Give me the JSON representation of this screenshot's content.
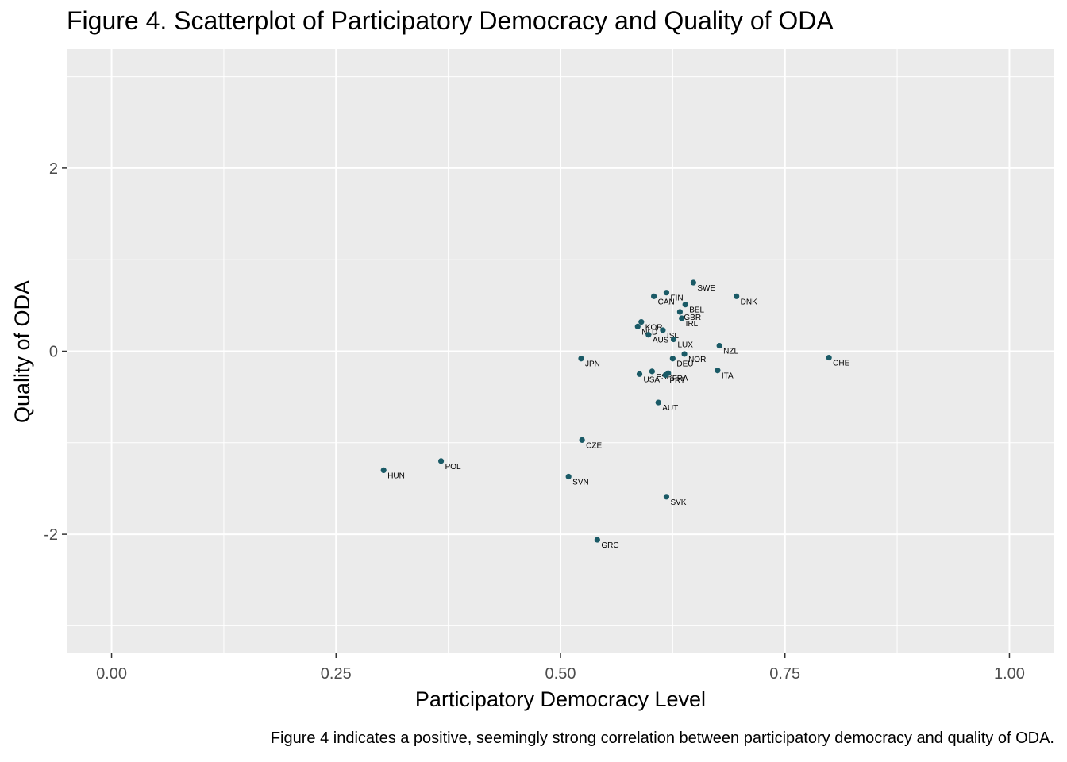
{
  "chart_data": {
    "type": "scatter",
    "title": "Figure 4. Scatterplot of Participatory Democracy and Quality of ODA",
    "xlabel": "Participatory Democracy Level",
    "ylabel": "Quality of ODA",
    "xlim": [
      -0.05,
      1.05
    ],
    "ylim": [
      -3.3,
      3.3
    ],
    "x_ticks": [
      0.0,
      0.25,
      0.5,
      0.75,
      1.0
    ],
    "x_tick_labels": [
      "0.00",
      "0.25",
      "0.50",
      "0.75",
      "1.00"
    ],
    "y_ticks": [
      -2,
      0,
      2
    ],
    "y_tick_labels": [
      "-2",
      "0",
      "2"
    ],
    "grid": true,
    "point_color": "#1a5a66",
    "points": [
      {
        "label": "SWE",
        "x": 0.648,
        "y": 0.75
      },
      {
        "label": "DNK",
        "x": 0.696,
        "y": 0.6
      },
      {
        "label": "FIN",
        "x": 0.618,
        "y": 0.64
      },
      {
        "label": "CAN",
        "x": 0.604,
        "y": 0.6
      },
      {
        "label": "BEL",
        "x": 0.639,
        "y": 0.51
      },
      {
        "label": "GBR",
        "x": 0.633,
        "y": 0.43
      },
      {
        "label": "IRL",
        "x": 0.635,
        "y": 0.36
      },
      {
        "label": "KOR",
        "x": 0.59,
        "y": 0.32
      },
      {
        "label": "NLD",
        "x": 0.586,
        "y": 0.27
      },
      {
        "label": "ISL",
        "x": 0.614,
        "y": 0.23
      },
      {
        "label": "AUS",
        "x": 0.598,
        "y": 0.18
      },
      {
        "label": "LUX",
        "x": 0.626,
        "y": 0.13
      },
      {
        "label": "NZL",
        "x": 0.677,
        "y": 0.06
      },
      {
        "label": "NOR",
        "x": 0.638,
        "y": -0.03
      },
      {
        "label": "DEU",
        "x": 0.625,
        "y": -0.08
      },
      {
        "label": "JPN",
        "x": 0.523,
        "y": -0.08
      },
      {
        "label": "CHE",
        "x": 0.799,
        "y": -0.07
      },
      {
        "label": "ITA",
        "x": 0.675,
        "y": -0.21
      },
      {
        "label": "ESP",
        "x": 0.602,
        "y": -0.22
      },
      {
        "label": "USA",
        "x": 0.588,
        "y": -0.25
      },
      {
        "label": "FRA",
        "x": 0.62,
        "y": -0.24
      },
      {
        "label": "PRT",
        "x": 0.617,
        "y": -0.26
      },
      {
        "label": "AUT",
        "x": 0.609,
        "y": -0.56
      },
      {
        "label": "CZE",
        "x": 0.524,
        "y": -0.97
      },
      {
        "label": "POL",
        "x": 0.367,
        "y": -1.2
      },
      {
        "label": "HUN",
        "x": 0.303,
        "y": -1.3
      },
      {
        "label": "SVN",
        "x": 0.509,
        "y": -1.37
      },
      {
        "label": "SVK",
        "x": 0.618,
        "y": -1.59
      },
      {
        "label": "GRC",
        "x": 0.541,
        "y": -2.06
      }
    ]
  },
  "caption": "Figure 4 indicates a positive, seemingly strong correlation between participatory democracy and quality of ODA."
}
